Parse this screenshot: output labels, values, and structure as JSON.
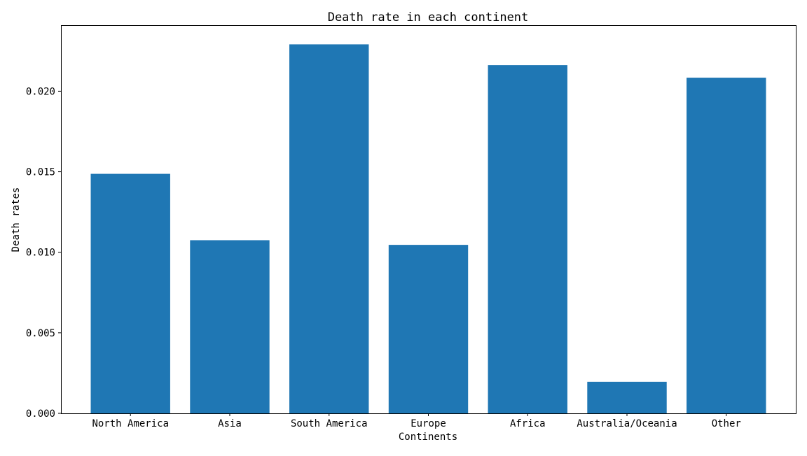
{
  "chart_data": {
    "type": "bar",
    "title": "Death rate in each continent",
    "xlabel": "Continents",
    "ylabel": "Death rates",
    "categories": [
      "North America",
      "Asia",
      "South America",
      "Europe",
      "Africa",
      "Australia/Oceania",
      "Other"
    ],
    "values": [
      0.01487,
      0.01075,
      0.02291,
      0.01046,
      0.02162,
      0.00196,
      0.02084
    ],
    "ylim": [
      0,
      0.0241
    ],
    "yticks": [
      "0.000",
      "0.005",
      "0.010",
      "0.015",
      "0.020"
    ],
    "ytick_values": [
      0,
      0.005,
      0.01,
      0.015,
      0.02
    ],
    "bar_color": "#1f77b4",
    "grid": false,
    "legend": "none"
  }
}
